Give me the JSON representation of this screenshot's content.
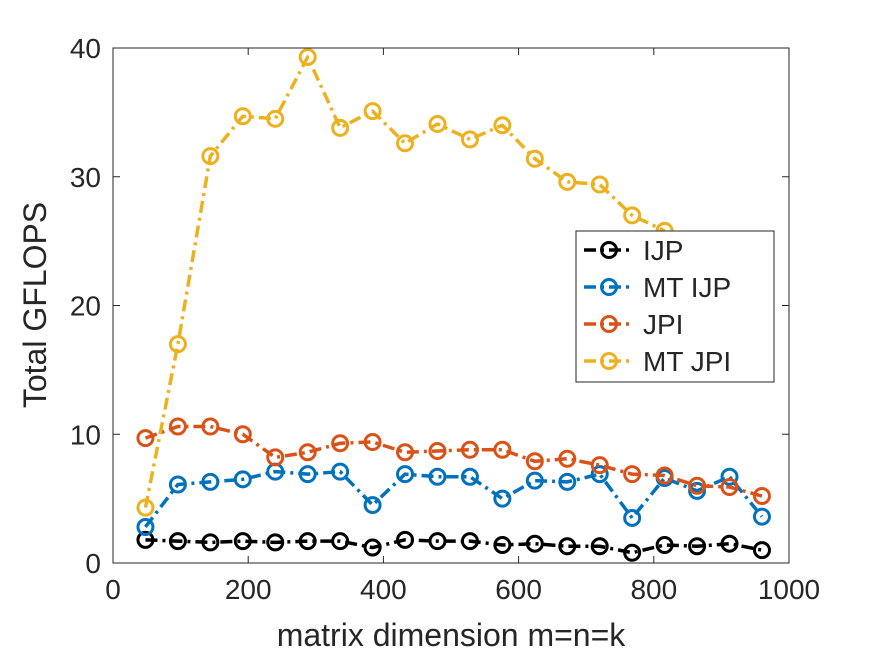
{
  "chart_data": {
    "type": "line",
    "title": "",
    "xlabel": "matrix dimension m=n=k",
    "ylabel": "Total GFLOPS",
    "xlim": [
      0,
      1000
    ],
    "ylim": [
      0,
      40
    ],
    "xticks": [
      0,
      200,
      400,
      600,
      800,
      1000
    ],
    "yticks": [
      0,
      10,
      20,
      30,
      40
    ],
    "grid": false,
    "legend_position": "right",
    "x": [
      48,
      96,
      144,
      192,
      240,
      288,
      336,
      384,
      432,
      480,
      528,
      576,
      624,
      672,
      720,
      768,
      816,
      864,
      912,
      960
    ],
    "series": [
      {
        "name": "IJP",
        "color": "#000000",
        "marker": "circle",
        "linestyle": "dash-dot",
        "values": [
          1.8,
          1.7,
          1.6,
          1.7,
          1.6,
          1.7,
          1.7,
          1.2,
          1.8,
          1.7,
          1.7,
          1.4,
          1.5,
          1.3,
          1.3,
          0.8,
          1.4,
          1.3,
          1.5,
          1.0
        ]
      },
      {
        "name": "MT IJP",
        "color": "#0072BD",
        "marker": "circle",
        "linestyle": "dash-dot",
        "values": [
          2.8,
          6.1,
          6.3,
          6.5,
          7.1,
          6.9,
          7.1,
          4.5,
          6.9,
          6.7,
          6.7,
          5.0,
          6.4,
          6.3,
          6.9,
          3.5,
          6.6,
          5.6,
          6.7,
          3.6
        ]
      },
      {
        "name": "JPI",
        "color": "#D95319",
        "marker": "circle",
        "linestyle": "dash-dot",
        "values": [
          9.7,
          10.6,
          10.6,
          10.0,
          8.2,
          8.6,
          9.3,
          9.4,
          8.6,
          8.7,
          8.8,
          8.8,
          7.9,
          8.1,
          7.6,
          6.9,
          6.8,
          6.0,
          5.9,
          5.2
        ]
      },
      {
        "name": "MT JPI",
        "color": "#EDB120",
        "marker": "circle",
        "linestyle": "dash-dot",
        "values": [
          4.3,
          17.0,
          31.6,
          34.7,
          34.5,
          39.3,
          33.8,
          35.1,
          32.6,
          34.1,
          32.9,
          34.0,
          31.4,
          29.6,
          29.4,
          27.0,
          25.8,
          null,
          null,
          null
        ]
      }
    ]
  }
}
